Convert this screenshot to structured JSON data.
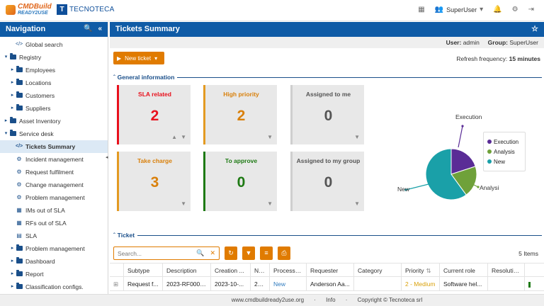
{
  "header": {
    "logo_cmdbuild_main": "CMDBuild",
    "logo_cmdbuild_sub": "READY2USE",
    "logo_tecnoteca_mark": "T",
    "logo_tecnoteca_text": "TECNOTECA",
    "user_name": "SuperUser",
    "icons": [
      "calendar-icon",
      "user-group-icon",
      "bell-icon",
      "gear-icon",
      "logout-icon"
    ]
  },
  "navigation": {
    "title": "Navigation",
    "items": [
      {
        "label": "Global search",
        "level": 1,
        "toggle": "",
        "icon": "code"
      },
      {
        "label": "Registry",
        "level": 0,
        "toggle": "▾",
        "icon": "folder"
      },
      {
        "label": "Employees",
        "level": 1,
        "toggle": "▸",
        "icon": "folder"
      },
      {
        "label": "Locations",
        "level": 1,
        "toggle": "▸",
        "icon": "folder"
      },
      {
        "label": "Customers",
        "level": 1,
        "toggle": "▸",
        "icon": "folder"
      },
      {
        "label": "Suppliers",
        "level": 1,
        "toggle": "▸",
        "icon": "folder"
      },
      {
        "label": "Asset Inventory",
        "level": 0,
        "toggle": "▸",
        "icon": "folder"
      },
      {
        "label": "Service desk",
        "level": 0,
        "toggle": "▾",
        "icon": "folder"
      },
      {
        "label": "Tickets Summary",
        "level": 1,
        "toggle": "",
        "icon": "code",
        "selected": true
      },
      {
        "label": "Incident management",
        "level": 1,
        "toggle": "",
        "icon": "gear"
      },
      {
        "label": "Request fulfilment",
        "level": 1,
        "toggle": "",
        "icon": "gear"
      },
      {
        "label": "Change management",
        "level": 1,
        "toggle": "",
        "icon": "gear"
      },
      {
        "label": "Problem management",
        "level": 1,
        "toggle": "",
        "icon": "gear"
      },
      {
        "label": "IMs out of SLA",
        "level": 1,
        "toggle": "",
        "icon": "grid"
      },
      {
        "label": "RFs out of SLA",
        "level": 1,
        "toggle": "",
        "icon": "grid"
      },
      {
        "label": "SLA",
        "level": 1,
        "toggle": "",
        "icon": "doc"
      },
      {
        "label": "Problem management",
        "level": 1,
        "toggle": "▸",
        "icon": "folder"
      },
      {
        "label": "Dashboard",
        "level": 1,
        "toggle": "▸",
        "icon": "folder"
      },
      {
        "label": "Report",
        "level": 1,
        "toggle": "▸",
        "icon": "folder"
      },
      {
        "label": "Classification configs.",
        "level": 1,
        "toggle": "▸",
        "icon": "folder"
      }
    ]
  },
  "main": {
    "title": "Tickets Summary",
    "user_label": "User:",
    "user_value": "admin",
    "group_label": "Group:",
    "group_value": "SuperUser",
    "new_ticket_label": "New ticket",
    "refresh_label": "Refresh frequency:",
    "refresh_value": "15 minutes",
    "general_section": "General information",
    "ticket_section": "Ticket"
  },
  "cards": [
    {
      "title": "SLA related",
      "value": "2",
      "color": "#e8101c",
      "border": "#e8101c"
    },
    {
      "title": "High priority",
      "value": "2",
      "color": "#d9800b",
      "border": "#e39a22"
    },
    {
      "title": "Assigned to me",
      "value": "0",
      "color": "#555555",
      "border": "#cfcfcf"
    },
    {
      "title": "Take charge",
      "value": "3",
      "color": "#d9800b",
      "border": "#e39a22"
    },
    {
      "title": "To approve",
      "value": "0",
      "color": "#1e7a14",
      "border": "#1e7a14"
    },
    {
      "title": "Assigned to my group",
      "value": "0",
      "color": "#555555",
      "border": "#cfcfcf"
    }
  ],
  "chart_data": {
    "type": "pie",
    "series": [
      {
        "name": "Execution",
        "value": 1,
        "color": "#5a2c96"
      },
      {
        "name": "Analysis",
        "value": 1,
        "color": "#6fa13a"
      },
      {
        "name": "New",
        "value": 3,
        "color": "#1aa0a8"
      }
    ],
    "slice_labels": [
      "Execution",
      "Analysi",
      "New"
    ],
    "legend_position": "right"
  },
  "ticket_toolbar": {
    "search_placeholder": "Search...",
    "items_count": "5 Items"
  },
  "grid": {
    "columns": [
      "",
      "Subtype",
      "Description",
      "Creation ...",
      "Nu...",
      "Process s...",
      "Requester",
      "Category",
      "Priority",
      "Current role",
      "Resolutio...",
      ""
    ],
    "rows": [
      [
        "⊞",
        "Request f...",
        "2023-RF0000...",
        "2023-10-...",
        "202...",
        "New",
        "Anderson Aa...",
        "",
        "2 - Medium",
        "Software hel...",
        "",
        ""
      ]
    ]
  },
  "footer": {
    "site": "www.cmdbuildready2use.org",
    "sep": "·",
    "info": "Info",
    "copyright": "Copyright © Tecnoteca srl"
  }
}
